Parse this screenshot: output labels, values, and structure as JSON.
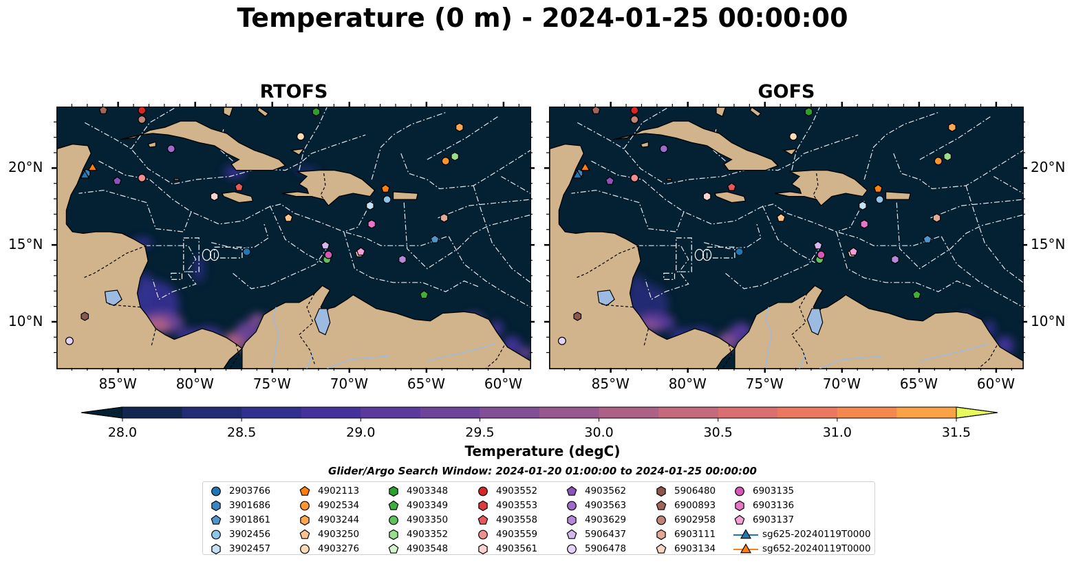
{
  "suptitle": "Temperature (0 m) - 2024-01-25 00:00:00",
  "maps": [
    {
      "title": "RTOFS",
      "model": "rtofs"
    },
    {
      "title": "GOFS",
      "model": "gofs"
    }
  ],
  "map_extent": {
    "lon_min": -89,
    "lon_max": -58.3,
    "lat_min": 7,
    "lat_max": 24
  },
  "lat_ticks": [
    {
      "value": 20,
      "label": "20°N"
    },
    {
      "value": 15,
      "label": "15°N"
    },
    {
      "value": 10,
      "label": "10°N"
    }
  ],
  "lon_ticks": [
    {
      "value": -85,
      "label": "85°W"
    },
    {
      "value": -80,
      "label": "80°W"
    },
    {
      "value": -75,
      "label": "75°W"
    },
    {
      "value": -70,
      "label": "70°W"
    },
    {
      "value": -65,
      "label": "65°W"
    },
    {
      "value": -60,
      "label": "60°W"
    }
  ],
  "colors": {
    "ocean_background": "#042033",
    "land": "#d2b48c",
    "lakes": "#9dbbe0",
    "eez_lines": "#ffffff",
    "coast": "#000000"
  },
  "colorbar": {
    "label": "Temperature (degC)",
    "min": 28.0,
    "max": 31.5,
    "step": 0.25,
    "extend": "both",
    "ticks": [
      "28.0",
      "28.5",
      "29.0",
      "29.5",
      "30.0",
      "30.5",
      "31.0",
      "31.5"
    ],
    "colors": [
      "#042033",
      "#12264f",
      "#222b74",
      "#31308f",
      "#45339b",
      "#5a3a9c",
      "#6d4499",
      "#824f94",
      "#98588f",
      "#ae6186",
      "#c5697c",
      "#d96f6f",
      "#e9785e",
      "#f48950",
      "#f9a246",
      "#f8bf45",
      "#f1dd4e",
      "#e6f65c"
    ],
    "under_color": "#042033",
    "over_color": "#e8fa5b"
  },
  "legend": {
    "title": "Glider/Argo Search Window: 2024-01-20 01:00:00 to 2024-01-25 00:00:00",
    "columns": [
      [
        {
          "id": "2903766",
          "marker": "circle",
          "color": "#1f77b4"
        },
        {
          "id": "3901686",
          "marker": "hexagon",
          "color": "#3a86c0"
        },
        {
          "id": "3901861",
          "marker": "pentagon",
          "color": "#4f95cc"
        },
        {
          "id": "3902456",
          "marker": "circle",
          "color": "#8ec6ea"
        },
        {
          "id": "3902457",
          "marker": "hexagon",
          "color": "#c4e1f7"
        }
      ],
      [
        {
          "id": "4902113",
          "marker": "pentagon",
          "color": "#ff7f0e"
        },
        {
          "id": "4902534",
          "marker": "circle",
          "color": "#ff9431"
        },
        {
          "id": "4903244",
          "marker": "hexagon",
          "color": "#ffa750"
        },
        {
          "id": "4903250",
          "marker": "pentagon",
          "color": "#ffc48e"
        },
        {
          "id": "4903276",
          "marker": "circle",
          "color": "#ffdbb5"
        }
      ],
      [
        {
          "id": "4903348",
          "marker": "hexagon",
          "color": "#2ca02c"
        },
        {
          "id": "4903349",
          "marker": "pentagon",
          "color": "#3eae3e"
        },
        {
          "id": "4903350",
          "marker": "circle",
          "color": "#5cc35c"
        },
        {
          "id": "4903352",
          "marker": "hexagon",
          "color": "#98df8a"
        },
        {
          "id": "4903548",
          "marker": "pentagon",
          "color": "#d4f5cc"
        }
      ],
      [
        {
          "id": "4903552",
          "marker": "circle",
          "color": "#d62728"
        },
        {
          "id": "4903553",
          "marker": "hexagon",
          "color": "#dc3b3c"
        },
        {
          "id": "4903558",
          "marker": "pentagon",
          "color": "#e6595a"
        },
        {
          "id": "4903559",
          "marker": "circle",
          "color": "#f08f8f"
        },
        {
          "id": "4903561",
          "marker": "hexagon",
          "color": "#fbd2d2"
        }
      ],
      [
        {
          "id": "4903562",
          "marker": "pentagon",
          "color": "#8c54b8"
        },
        {
          "id": "4903563",
          "marker": "circle",
          "color": "#9d6cc8"
        },
        {
          "id": "4903629",
          "marker": "hexagon",
          "color": "#b48ad8"
        },
        {
          "id": "5906437",
          "marker": "pentagon",
          "color": "#d2b8ec"
        },
        {
          "id": "5906478",
          "marker": "circle",
          "color": "#e6d2f7"
        }
      ],
      [
        {
          "id": "5906480",
          "marker": "hexagon",
          "color": "#8c564b"
        },
        {
          "id": "6900893",
          "marker": "pentagon",
          "color": "#a0665a"
        },
        {
          "id": "6902958",
          "marker": "circle",
          "color": "#c08479"
        },
        {
          "id": "6903111",
          "marker": "hexagon",
          "color": "#e3a897"
        },
        {
          "id": "6903134",
          "marker": "pentagon",
          "color": "#f8d6c6"
        }
      ],
      [
        {
          "id": "6903135",
          "marker": "circle",
          "color": "#d657b5"
        },
        {
          "id": "6903136",
          "marker": "hexagon",
          "color": "#e577c6"
        },
        {
          "id": "6903137",
          "marker": "pentagon",
          "color": "#f49fd8"
        },
        {
          "id": "sg625-20240119T0000",
          "marker": "triangle-line",
          "color": "#1f77b4"
        },
        {
          "id": "sg652-20240119T0000",
          "marker": "triangle-line",
          "color": "#ff7f0e"
        }
      ]
    ]
  },
  "floats": [
    {
      "id": "2903766",
      "lon": -76.7,
      "lat": 14.6
    },
    {
      "id": "3901686",
      "lon": -87.1,
      "lat": 19.7
    },
    {
      "id": "3901861",
      "lon": -64.5,
      "lat": 15.4
    },
    {
      "id": "3902456",
      "lon": -67.6,
      "lat": 18.0
    },
    {
      "id": "3902457",
      "lon": -68.7,
      "lat": 17.6
    },
    {
      "id": "4902113",
      "lon": -67.7,
      "lat": 18.7
    },
    {
      "id": "4902534",
      "lon": -63.8,
      "lat": 20.5
    },
    {
      "id": "4903244",
      "lon": -62.9,
      "lat": 22.7
    },
    {
      "id": "4903250",
      "lon": -74.0,
      "lat": 16.8
    },
    {
      "id": "4903276",
      "lon": -73.2,
      "lat": 22.1
    },
    {
      "id": "4903348",
      "lon": -72.2,
      "lat": 23.7
    },
    {
      "id": "4903349",
      "lon": -65.2,
      "lat": 11.8
    },
    {
      "id": "4903350",
      "lon": -71.5,
      "lat": 14.1
    },
    {
      "id": "4903352",
      "lon": -63.2,
      "lat": 20.8
    },
    {
      "id": "4903548",
      "lon": -86.0,
      "lat": 23.8
    },
    {
      "id": "4903552",
      "lon": -83.5,
      "lat": 23.8
    },
    {
      "id": "4903553",
      "lon": -83.5,
      "lat": 23.2
    },
    {
      "id": "4903558",
      "lon": -77.2,
      "lat": 18.8
    },
    {
      "id": "4903559",
      "lon": -83.5,
      "lat": 19.4
    },
    {
      "id": "4903561",
      "lon": -78.8,
      "lat": 18.2
    },
    {
      "id": "4903562",
      "lon": -85.1,
      "lat": 19.2
    },
    {
      "id": "4903563",
      "lon": -81.6,
      "lat": 21.3
    },
    {
      "id": "4903629",
      "lon": -66.6,
      "lat": 14.1
    },
    {
      "id": "5906437",
      "lon": -71.6,
      "lat": 15.0
    },
    {
      "id": "5906478",
      "lon": -88.2,
      "lat": 8.8
    },
    {
      "id": "5906480",
      "lon": -87.2,
      "lat": 10.4
    },
    {
      "id": "6900893",
      "lon": -86.0,
      "lat": 23.8
    },
    {
      "id": "6902958",
      "lon": -83.5,
      "lat": 23.2
    },
    {
      "id": "6903111",
      "lon": -63.9,
      "lat": 16.8
    },
    {
      "id": "6903134",
      "lon": -69.4,
      "lat": 14.5
    },
    {
      "id": "6903135",
      "lon": -71.4,
      "lat": 14.4
    },
    {
      "id": "6903136",
      "lon": -68.6,
      "lat": 16.4
    },
    {
      "id": "6903137",
      "lon": -69.3,
      "lat": 14.6
    },
    {
      "id": "sg625-20240119T0000",
      "lon": -87.2,
      "lat": 19.6
    },
    {
      "id": "sg652-20240119T0000",
      "lon": -86.7,
      "lat": 20.1
    }
  ]
}
